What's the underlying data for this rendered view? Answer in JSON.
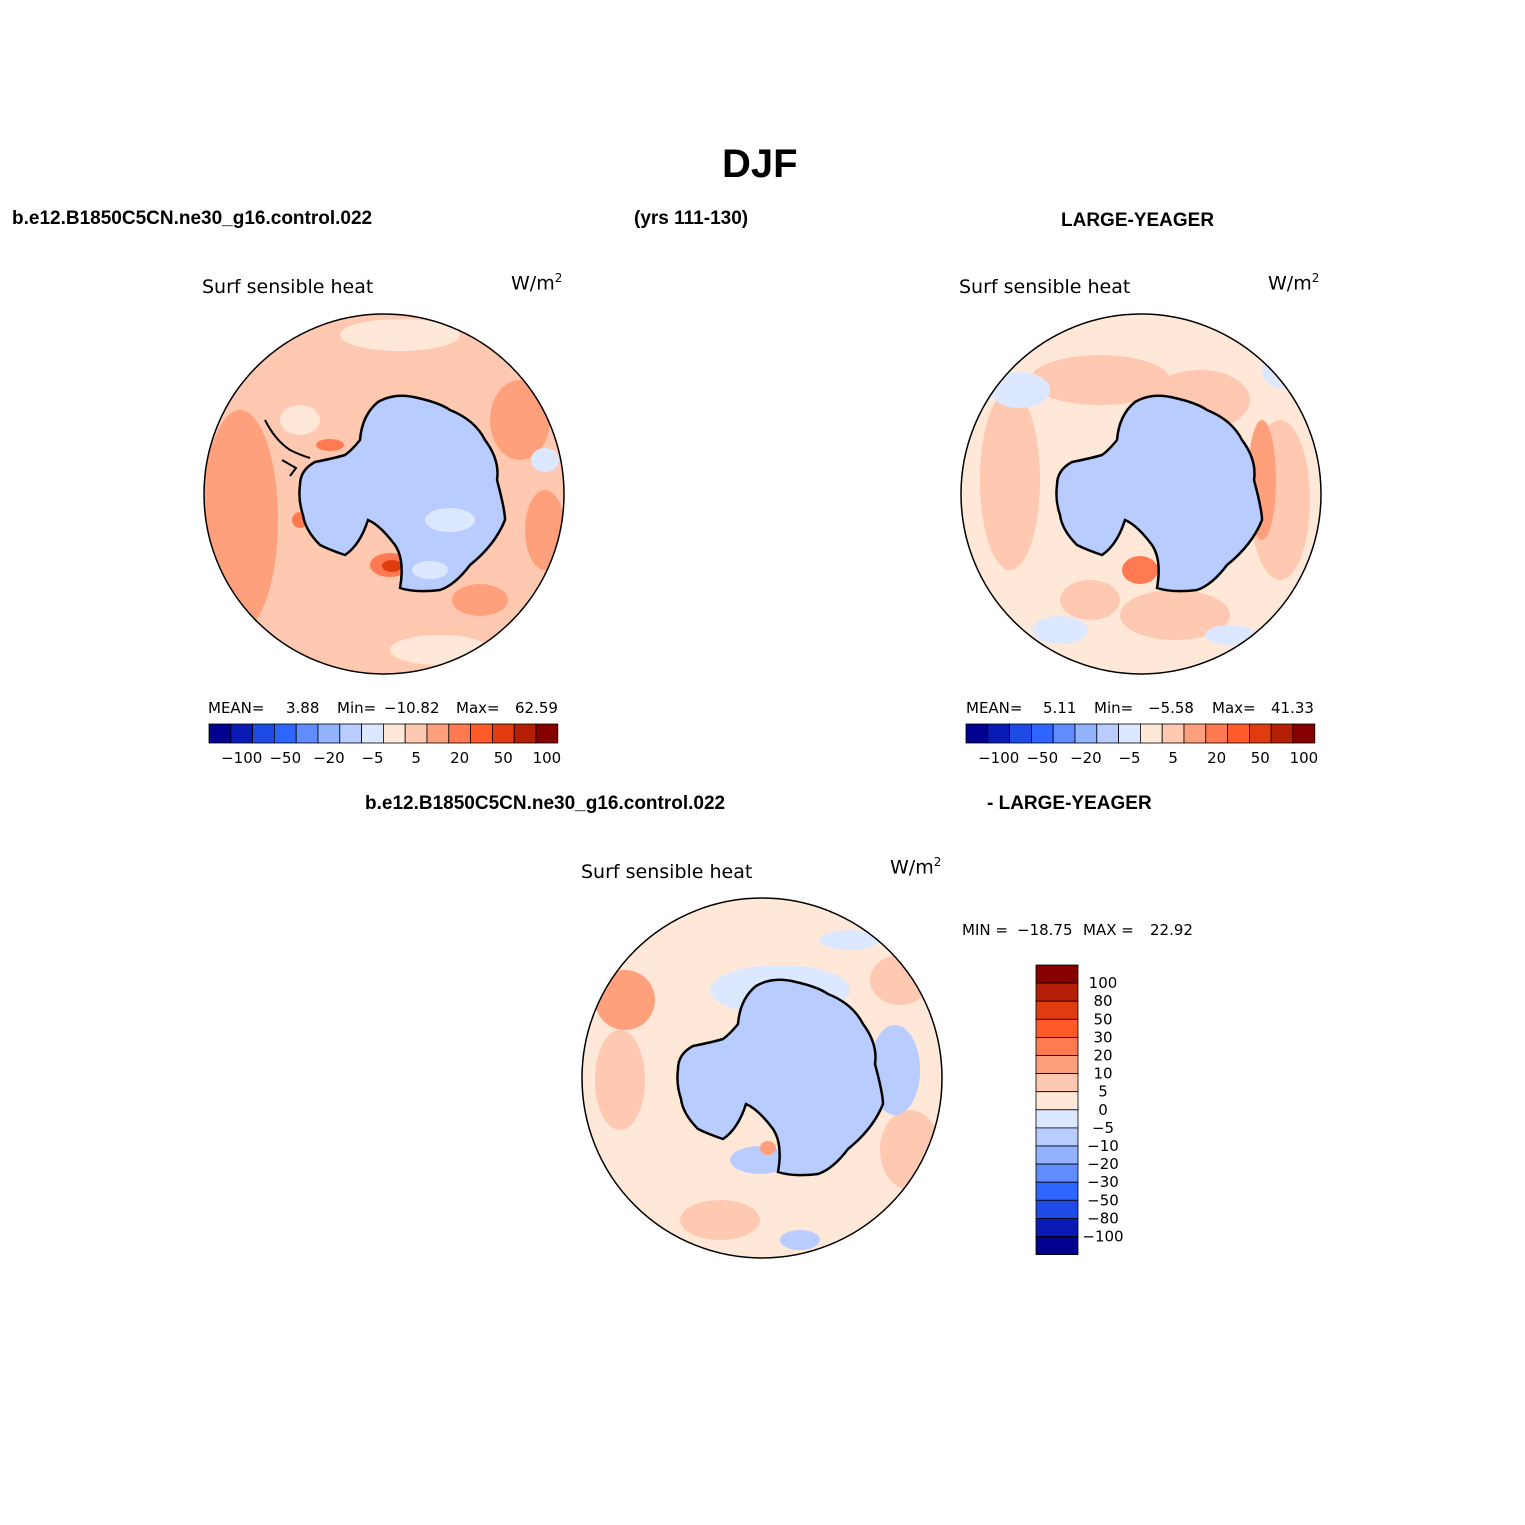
{
  "title": "DJF",
  "header": {
    "case_name": "b.e12.B1850C5CN.ne30_g16.control.022",
    "years": "(yrs 111-130)",
    "obs_name": "LARGE-YEAGER"
  },
  "diff_header": {
    "case_name": "b.e12.B1850C5CN.ne30_g16.control.022",
    "obs_name": "- LARGE-YEAGER"
  },
  "panels": [
    {
      "variable": "Surf sensible heat",
      "units": "W/m",
      "units_sup": "2",
      "stats": {
        "mean_label": "MEAN=",
        "mean": "3.88",
        "min_label": "Min=",
        "min": "−10.82",
        "max_label": "Max=",
        "max": "62.59"
      }
    },
    {
      "variable": "Surf sensible heat",
      "units": "W/m",
      "units_sup": "2",
      "stats": {
        "mean_label": "MEAN=",
        "mean": "5.11",
        "min_label": "Min=",
        "min": "−5.58",
        "max_label": "Max=",
        "max": "41.33"
      }
    },
    {
      "variable": "Surf sensible heat",
      "units": "W/m",
      "units_sup": "2",
      "stats": {
        "min_label": "MIN =",
        "min": "−18.75",
        "max_label": "MAX =",
        "max": "22.92"
      }
    }
  ],
  "colorbar_small": {
    "colors": [
      "#00008e",
      "#0a1ab4",
      "#1e4be6",
      "#2e64ff",
      "#5f8dff",
      "#93b3ff",
      "#b8ccff",
      "#dce8ff",
      "#ffe8d8",
      "#ffc8b0",
      "#ffa07d",
      "#ff7a50",
      "#ff5a28",
      "#e03c10",
      "#b41e05",
      "#870000"
    ],
    "tick_labels": [
      "−100",
      "−50",
      "−20",
      "−5",
      "5",
      "20",
      "50",
      "100"
    ]
  },
  "colorbar_diff": {
    "colors": [
      "#870000",
      "#b41e05",
      "#e03c10",
      "#ff5a28",
      "#ff7a50",
      "#ffa07d",
      "#ffc8b0",
      "#ffe8d8",
      "#dce8ff",
      "#b8ccff",
      "#93b3ff",
      "#5f8dff",
      "#2e64ff",
      "#1e4be6",
      "#0a1ab4",
      "#00008e"
    ],
    "tick_labels": [
      "100",
      "80",
      "50",
      "30",
      "20",
      "10",
      "5",
      "0",
      "−5",
      "−10",
      "−20",
      "−30",
      "−50",
      "−80",
      "−100"
    ]
  }
}
